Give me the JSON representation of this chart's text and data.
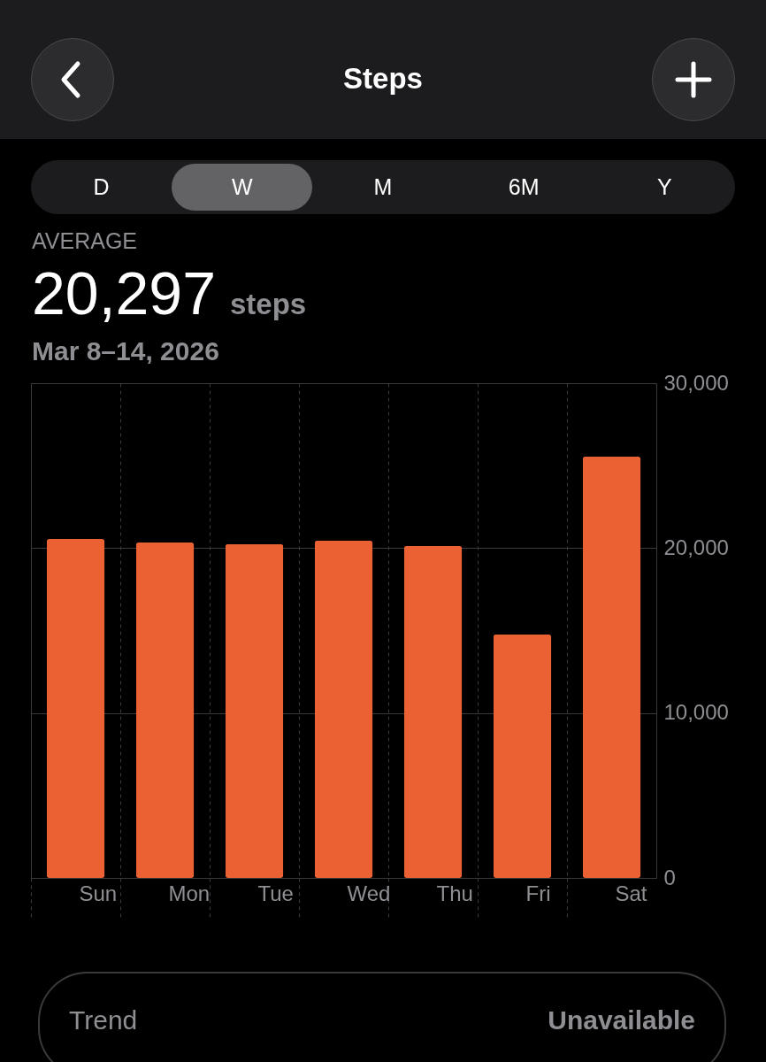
{
  "chart_data": {
    "type": "bar",
    "title": "Steps",
    "annotations": [
      "AVERAGE",
      "20,297",
      "steps",
      "Mar 8–14, 2026",
      "D",
      "W",
      "M",
      "6M",
      "Y",
      "Trend",
      "Unavailable"
    ],
    "categories": [
      "Sun",
      "Mon",
      "Tue",
      "Wed",
      "Thu",
      "Fri",
      "Sat"
    ],
    "values": [
      20550,
      20340,
      20240,
      20450,
      20130,
      14760,
      25550
    ],
    "color": "#eb6134",
    "ylim": [
      0,
      30000
    ],
    "yticks": [
      {
        "value": 0,
        "label": "0"
      },
      {
        "value": 10000,
        "label": "10,000"
      },
      {
        "value": 20000,
        "label": "20,000"
      },
      {
        "value": 30000,
        "label": "30,000"
      }
    ],
    "grid": true
  }
}
